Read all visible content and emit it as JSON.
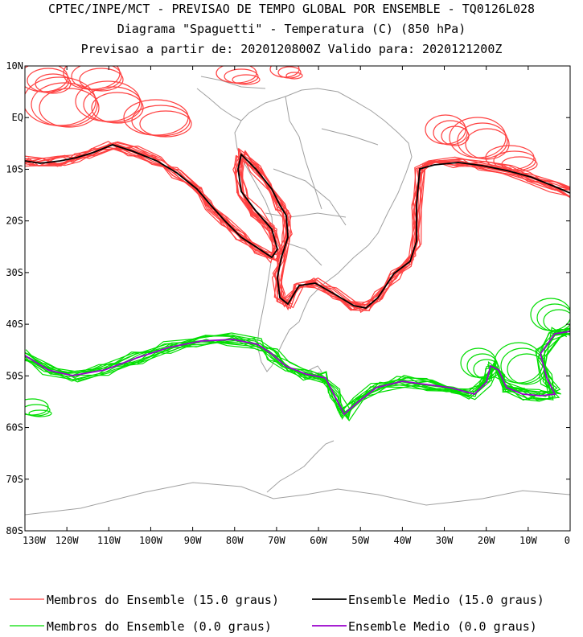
{
  "title": {
    "line1": "CPTEC/INPE/MCT - PREVISAO DE TEMPO GLOBAL POR ENSEMBLE - TQ0126L028",
    "line2": "Diagrama \"Spaguetti\" - Temperatura (C) (850 hPa)",
    "line3": "Previsao a partir de: 2020120800Z  Valido para: 2020121200Z"
  },
  "axes": {
    "lon_labels": [
      "130W",
      "120W",
      "110W",
      "100W",
      "90W",
      "80W",
      "70W",
      "60W",
      "50W",
      "40W",
      "30W",
      "20W",
      "10W",
      "0"
    ],
    "lat_labels": [
      "10N",
      "EQ",
      "10S",
      "20S",
      "30S",
      "40S",
      "50S",
      "60S",
      "70S",
      "80S"
    ],
    "lon_range": [
      -130,
      0
    ],
    "lat_range": [
      -80,
      10
    ]
  },
  "legend": [
    {
      "label": "Membros do Ensemble (15.0 graus)",
      "color": "#ff4040"
    },
    {
      "label": "Ensemble Medio (15.0 graus)",
      "color": "#000000"
    },
    {
      "label": "Membros do Ensemble (0.0 graus)",
      "color": "#00dd00"
    },
    {
      "label": "Ensemble Medio (0.0 graus)",
      "color": "#9900cc"
    }
  ],
  "colors": {
    "members_15": "#ff4040",
    "mean_15": "#000000",
    "members_0": "#00dd00",
    "mean_0": "#9900cc",
    "coast": "#a0a0a0"
  }
}
